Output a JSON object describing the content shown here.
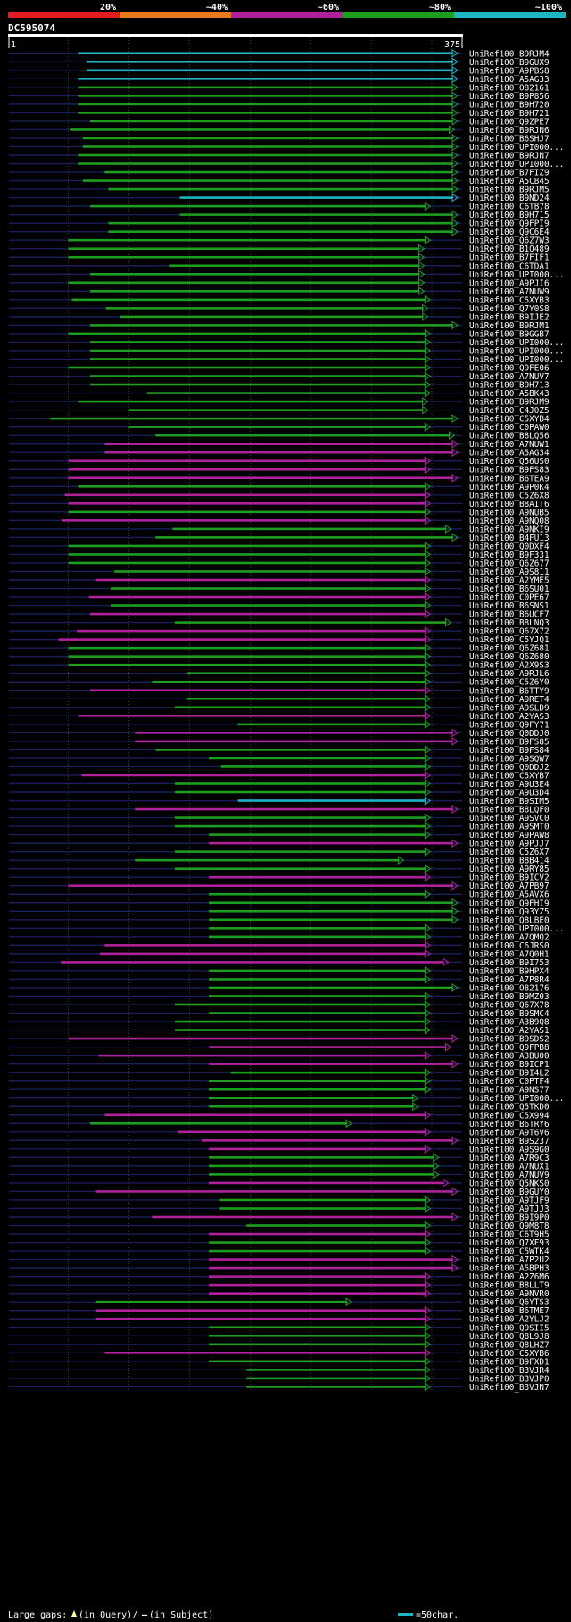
{
  "chart_data": {
    "type": "alignment-overview",
    "query_id": "DC595074",
    "query_start": "1",
    "query_end": "375",
    "query_length": 375,
    "identity_legend": [
      {
        "label": "20%",
        "color": "#e31b23"
      },
      {
        "label": "~40%",
        "color": "#e87a1e"
      },
      {
        "label": "~60%",
        "color": "#b0229c"
      },
      {
        "label": "~80%",
        "color": "#1e9e1e"
      },
      {
        "label": "~100%",
        "color": "#1fb5c2"
      }
    ],
    "footer": {
      "gaps_label": "Large gaps:",
      "query_gap_label": "(in Query)/",
      "subject_gap_label": "(in Subject)",
      "scale_label": "=50char."
    },
    "hits": [
      {
        "id": "UniRef100_B9RJM4",
        "start": 58,
        "end": 375,
        "color": "#1fb5c2"
      },
      {
        "id": "UniRef100_B9GUX9",
        "start": 65,
        "end": 375,
        "color": "#1fb5c2"
      },
      {
        "id": "UniRef100_A9PBS8",
        "start": 65,
        "end": 375,
        "color": "#1fb5c2"
      },
      {
        "id": "UniRef100_A5AG33",
        "start": 58,
        "end": 375,
        "color": "#1fb5c2"
      },
      {
        "id": "UniRef100_O82161",
        "start": 58,
        "end": 373,
        "color": "#1e9e1e"
      },
      {
        "id": "UniRef100_B9P856",
        "start": 58,
        "end": 378,
        "color": "#1e9e1e"
      },
      {
        "id": "UniRef100_B9H720",
        "start": 58,
        "end": 378,
        "color": "#1e9e1e"
      },
      {
        "id": "UniRef100_B9H721",
        "start": 58,
        "end": 378,
        "color": "#1e9e1e"
      },
      {
        "id": "UniRef100_Q9ZPE7",
        "start": 68,
        "end": 380,
        "color": "#1e9e1e"
      },
      {
        "id": "UniRef100_B9RJN6",
        "start": 52,
        "end": 368,
        "color": "#1e9e1e"
      },
      {
        "id": "UniRef100_B6SHJ7",
        "start": 62,
        "end": 382,
        "color": "#1e9e1e"
      },
      {
        "id": "UniRef100_UPI000...",
        "start": 62,
        "end": 378,
        "color": "#1e9e1e"
      },
      {
        "id": "UniRef100_B9RJN7",
        "start": 58,
        "end": 378,
        "color": "#1e9e1e"
      },
      {
        "id": "UniRef100_UPI000...",
        "start": 58,
        "end": 381,
        "color": "#1e9e1e"
      },
      {
        "id": "UniRef100_B7FIZ9",
        "start": 80,
        "end": 380,
        "color": "#1e9e1e"
      },
      {
        "id": "UniRef100_A5CB45",
        "start": 62,
        "end": 382,
        "color": "#1e9e1e"
      },
      {
        "id": "UniRef100_B9RJM5",
        "start": 83,
        "end": 375,
        "color": "#1e9e1e"
      },
      {
        "id": "UniRef100_B9ND24",
        "start": 142,
        "end": 378,
        "color": "#1fb5c2"
      },
      {
        "id": "UniRef100_C6TB78",
        "start": 68,
        "end": 348,
        "color": "#1e9e1e"
      },
      {
        "id": "UniRef100_B9H715",
        "start": 142,
        "end": 378,
        "color": "#1e9e1e"
      },
      {
        "id": "UniRef100_Q9FPI9",
        "start": 83,
        "end": 380,
        "color": "#1e9e1e"
      },
      {
        "id": "UniRef100_Q9C6E4",
        "start": 83,
        "end": 380,
        "color": "#1e9e1e"
      },
      {
        "id": "UniRef100_Q6Z7W3",
        "start": 50,
        "end": 348,
        "color": "#1e9e1e"
      },
      {
        "id": "UniRef100_B1Q489",
        "start": 50,
        "end": 343,
        "color": "#1e9e1e"
      },
      {
        "id": "UniRef100_B7FIF1",
        "start": 50,
        "end": 343,
        "color": "#1e9e1e"
      },
      {
        "id": "UniRef100_C6TDA1",
        "start": 133,
        "end": 343,
        "color": "#1e9e1e"
      },
      {
        "id": "UniRef100_UPI000...",
        "start": 68,
        "end": 343,
        "color": "#1e9e1e"
      },
      {
        "id": "UniRef100_A9PJI6",
        "start": 50,
        "end": 343,
        "color": "#1e9e1e"
      },
      {
        "id": "UniRef100_A7NUW9",
        "start": 68,
        "end": 343,
        "color": "#1e9e1e"
      },
      {
        "id": "UniRef100_C5XYB3",
        "start": 53,
        "end": 348,
        "color": "#1e9e1e"
      },
      {
        "id": "UniRef100_Q7Y0S8",
        "start": 81,
        "end": 346,
        "color": "#1e9e1e"
      },
      {
        "id": "UniRef100_B9IJE2",
        "start": 93,
        "end": 346,
        "color": "#1e9e1e"
      },
      {
        "id": "UniRef100_B9RJM1",
        "start": 68,
        "end": 375,
        "color": "#1e9e1e"
      },
      {
        "id": "UniRef100_B9GGB7",
        "start": 50,
        "end": 348,
        "color": "#1e9e1e"
      },
      {
        "id": "UniRef100_UPI000...",
        "start": 68,
        "end": 348,
        "color": "#1e9e1e"
      },
      {
        "id": "UniRef100_UPI000...",
        "start": 68,
        "end": 348,
        "color": "#1e9e1e"
      },
      {
        "id": "UniRef100_UPI000...",
        "start": 68,
        "end": 348,
        "color": "#1e9e1e"
      },
      {
        "id": "UniRef100_Q9FE06",
        "start": 50,
        "end": 348,
        "color": "#1e9e1e"
      },
      {
        "id": "UniRef100_A7NUV7",
        "start": 68,
        "end": 348,
        "color": "#1e9e1e"
      },
      {
        "id": "UniRef100_B9H713",
        "start": 68,
        "end": 348,
        "color": "#1e9e1e"
      },
      {
        "id": "UniRef100_A5BK43",
        "start": 115,
        "end": 348,
        "color": "#1e9e1e"
      },
      {
        "id": "UniRef100_B9RJM9",
        "start": 58,
        "end": 346,
        "color": "#1e9e1e"
      },
      {
        "id": "UniRef100_C4J0Z5",
        "start": 100,
        "end": 346,
        "color": "#1e9e1e"
      },
      {
        "id": "UniRef100_C5XYB4",
        "start": 35,
        "end": 375,
        "color": "#1e9e1e"
      },
      {
        "id": "UniRef100_C0PAW0",
        "start": 100,
        "end": 348,
        "color": "#1e9e1e"
      },
      {
        "id": "UniRef100_B8LQ56",
        "start": 122,
        "end": 368,
        "color": "#1e9e1e"
      },
      {
        "id": "UniRef100_A7NUW1",
        "start": 80,
        "end": 372,
        "color": "#b0229c"
      },
      {
        "id": "UniRef100_A5AG34",
        "start": 80,
        "end": 372,
        "color": "#b0229c"
      },
      {
        "id": "UniRef100_Q56US0",
        "start": 50,
        "end": 348,
        "color": "#b0229c"
      },
      {
        "id": "UniRef100_B9FS83",
        "start": 50,
        "end": 348,
        "color": "#b0229c"
      },
      {
        "id": "UniRef100_B6TEA9",
        "start": 50,
        "end": 373,
        "color": "#b0229c"
      },
      {
        "id": "UniRef100_A9P0K4",
        "start": 58,
        "end": 348,
        "color": "#1e9e1e"
      },
      {
        "id": "UniRef100_C5Z6X8",
        "start": 47,
        "end": 348,
        "color": "#b0229c"
      },
      {
        "id": "UniRef100_B8AIT6",
        "start": 50,
        "end": 348,
        "color": "#b0229c"
      },
      {
        "id": "UniRef100_A9NUB5",
        "start": 50,
        "end": 348,
        "color": "#1e9e1e"
      },
      {
        "id": "UniRef100_A9NQ08",
        "start": 45,
        "end": 348,
        "color": "#b0229c"
      },
      {
        "id": "UniRef100_A9NKI9",
        "start": 136,
        "end": 365,
        "color": "#1e9e1e"
      },
      {
        "id": "UniRef100_B4FU13",
        "start": 122,
        "end": 373,
        "color": "#1e9e1e"
      },
      {
        "id": "UniRef100_Q0DXF4",
        "start": 50,
        "end": 348,
        "color": "#1e9e1e"
      },
      {
        "id": "UniRef100_B9F331",
        "start": 50,
        "end": 348,
        "color": "#1e9e1e"
      },
      {
        "id": "UniRef100_Q6Z677",
        "start": 50,
        "end": 348,
        "color": "#1e9e1e"
      },
      {
        "id": "UniRef100_A9S811",
        "start": 88,
        "end": 348,
        "color": "#1e9e1e"
      },
      {
        "id": "UniRef100_A2YME5",
        "start": 73,
        "end": 348,
        "color": "#b0229c"
      },
      {
        "id": "UniRef100_B6SU01",
        "start": 85,
        "end": 348,
        "color": "#1e9e1e"
      },
      {
        "id": "UniRef100_C0PE67",
        "start": 67,
        "end": 348,
        "color": "#b0229c"
      },
      {
        "id": "UniRef100_B6SNS1",
        "start": 85,
        "end": 348,
        "color": "#1e9e1e"
      },
      {
        "id": "UniRef100_B6UCF7",
        "start": 68,
        "end": 348,
        "color": "#b0229c"
      },
      {
        "id": "UniRef100_B8LNQ3",
        "start": 138,
        "end": 365,
        "color": "#1e9e1e"
      },
      {
        "id": "UniRef100_Q67X72",
        "start": 57,
        "end": 348,
        "color": "#b0229c"
      },
      {
        "id": "UniRef100_C5YJQ1",
        "start": 42,
        "end": 348,
        "color": "#b0229c"
      },
      {
        "id": "UniRef100_Q6Z681",
        "start": 50,
        "end": 348,
        "color": "#1e9e1e"
      },
      {
        "id": "UniRef100_Q6Z680",
        "start": 50,
        "end": 348,
        "color": "#1e9e1e"
      },
      {
        "id": "UniRef100_A2X9S3",
        "start": 50,
        "end": 348,
        "color": "#1e9e1e"
      },
      {
        "id": "UniRef100_A9RJL6",
        "start": 148,
        "end": 348,
        "color": "#1e9e1e"
      },
      {
        "id": "UniRef100_C5Z6Y0",
        "start": 119,
        "end": 348,
        "color": "#1e9e1e"
      },
      {
        "id": "UniRef100_B6TTY9",
        "start": 68,
        "end": 348,
        "color": "#b0229c"
      },
      {
        "id": "UniRef100_A9RET4",
        "start": 148,
        "end": 348,
        "color": "#1e9e1e"
      },
      {
        "id": "UniRef100_A9SLD9",
        "start": 138,
        "end": 348,
        "color": "#1e9e1e"
      },
      {
        "id": "UniRef100_A2YAS3",
        "start": 58,
        "end": 348,
        "color": "#b0229c"
      },
      {
        "id": "UniRef100_Q9FY71",
        "start": 190,
        "end": 348,
        "color": "#1e9e1e"
      },
      {
        "id": "UniRef100_Q0DDJ0",
        "start": 105,
        "end": 385,
        "color": "#b0229c"
      },
      {
        "id": "UniRef100_B9FS85",
        "start": 105,
        "end": 385,
        "color": "#b0229c"
      },
      {
        "id": "UniRef100_B9FS84",
        "start": 122,
        "end": 348,
        "color": "#1e9e1e"
      },
      {
        "id": "UniRef100_A9SQW7",
        "start": 166,
        "end": 348,
        "color": "#1e9e1e"
      },
      {
        "id": "UniRef100_Q0DDJ2",
        "start": 176,
        "end": 348,
        "color": "#1e9e1e"
      },
      {
        "id": "UniRef100_C5XYB7",
        "start": 61,
        "end": 348,
        "color": "#b0229c"
      },
      {
        "id": "UniRef100_A9U3E4",
        "start": 138,
        "end": 348,
        "color": "#1e9e1e"
      },
      {
        "id": "UniRef100_A9U3D4",
        "start": 138,
        "end": 348,
        "color": "#1e9e1e"
      },
      {
        "id": "UniRef100_B9SIM5",
        "start": 190,
        "end": 348,
        "color": "#1fb5c2"
      },
      {
        "id": "UniRef100_B8LQF0",
        "start": 105,
        "end": 385,
        "color": "#b0229c"
      },
      {
        "id": "UniRef100_A9SVC0",
        "start": 138,
        "end": 348,
        "color": "#1e9e1e"
      },
      {
        "id": "UniRef100_A9SMT0",
        "start": 138,
        "end": 348,
        "color": "#1e9e1e"
      },
      {
        "id": "UniRef100_A9PAW8",
        "start": 166,
        "end": 348,
        "color": "#1e9e1e"
      },
      {
        "id": "UniRef100_A9PJJ7",
        "start": 166,
        "end": 385,
        "color": "#b0229c"
      },
      {
        "id": "UniRef100_C5Z6X7",
        "start": 138,
        "end": 348,
        "color": "#1e9e1e"
      },
      {
        "id": "UniRef100_B8B414",
        "start": 105,
        "end": 326,
        "color": "#1e9e1e"
      },
      {
        "id": "UniRef100_A9RY85",
        "start": 138,
        "end": 348,
        "color": "#1e9e1e"
      },
      {
        "id": "UniRef100_B9ICV2",
        "start": 166,
        "end": 348,
        "color": "#b0229c"
      },
      {
        "id": "UniRef100_A7PB97",
        "start": 50,
        "end": 385,
        "color": "#b0229c"
      },
      {
        "id": "UniRef100_A5AVX6",
        "start": 166,
        "end": 348,
        "color": "#1e9e1e"
      },
      {
        "id": "UniRef100_Q9FHI9",
        "start": 166,
        "end": 385,
        "color": "#1e9e1e"
      },
      {
        "id": "UniRef100_Q93YZ5",
        "start": 166,
        "end": 385,
        "color": "#1e9e1e"
      },
      {
        "id": "UniRef100_Q8LBE0",
        "start": 166,
        "end": 385,
        "color": "#1e9e1e"
      },
      {
        "id": "UniRef100_UPI000...",
        "start": 166,
        "end": 348,
        "color": "#1e9e1e"
      },
      {
        "id": "UniRef100_A7QMQ2",
        "start": 166,
        "end": 348,
        "color": "#1e9e1e"
      },
      {
        "id": "UniRef100_C6JRS0",
        "start": 80,
        "end": 348,
        "color": "#b0229c"
      },
      {
        "id": "UniRef100_A7Q0H1",
        "start": 76,
        "end": 348,
        "color": "#b0229c"
      },
      {
        "id": "UniRef100_B9I753",
        "start": 44,
        "end": 363,
        "color": "#b0229c"
      },
      {
        "id": "UniRef100_B9HPX4",
        "start": 166,
        "end": 348,
        "color": "#1e9e1e"
      },
      {
        "id": "UniRef100_A7P8R4",
        "start": 166,
        "end": 348,
        "color": "#1e9e1e"
      },
      {
        "id": "UniRef100_O82176",
        "start": 166,
        "end": 385,
        "color": "#1e9e1e"
      },
      {
        "id": "UniRef100_B9MZ03",
        "start": 166,
        "end": 348,
        "color": "#1e9e1e"
      },
      {
        "id": "UniRef100_Q67X78",
        "start": 138,
        "end": 348,
        "color": "#1e9e1e"
      },
      {
        "id": "UniRef100_B9SMC4",
        "start": 166,
        "end": 348,
        "color": "#1e9e1e"
      },
      {
        "id": "UniRef100_A3B9Q8",
        "start": 138,
        "end": 348,
        "color": "#1e9e1e"
      },
      {
        "id": "UniRef100_A2YAS1",
        "start": 138,
        "end": 348,
        "color": "#1e9e1e"
      },
      {
        "id": "UniRef100_B9SDS2",
        "start": 50,
        "end": 375,
        "color": "#b0229c"
      },
      {
        "id": "UniRef100_Q9FPB8",
        "start": 166,
        "end": 365,
        "color": "#b0229c"
      },
      {
        "id": "UniRef100_A3BU00",
        "start": 75,
        "end": 348,
        "color": "#b0229c"
      },
      {
        "id": "UniRef100_B9ICP1",
        "start": 166,
        "end": 375,
        "color": "#b0229c"
      },
      {
        "id": "UniRef100_B9I4L2",
        "start": 184,
        "end": 348,
        "color": "#1e9e1e"
      },
      {
        "id": "UniRef100_C0PTF4",
        "start": 166,
        "end": 348,
        "color": "#1e9e1e"
      },
      {
        "id": "UniRef100_A9NS77",
        "start": 166,
        "end": 348,
        "color": "#1e9e1e"
      },
      {
        "id": "UniRef100_UPI000...",
        "start": 166,
        "end": 338,
        "color": "#1e9e1e"
      },
      {
        "id": "UniRef100_Q5TKD0",
        "start": 166,
        "end": 338,
        "color": "#1e9e1e"
      },
      {
        "id": "UniRef100_C5X994",
        "start": 80,
        "end": 348,
        "color": "#b0229c"
      },
      {
        "id": "UniRef100_B6TRY6",
        "start": 68,
        "end": 283,
        "color": "#1e9e1e"
      },
      {
        "id": "UniRef100_A9T6V6",
        "start": 140,
        "end": 348,
        "color": "#b0229c"
      },
      {
        "id": "UniRef100_B9S237",
        "start": 160,
        "end": 375,
        "color": "#b0229c"
      },
      {
        "id": "UniRef100_A9S9G0",
        "start": 166,
        "end": 348,
        "color": "#b0229c"
      },
      {
        "id": "UniRef100_A7R9C3",
        "start": 166,
        "end": 355,
        "color": "#1e9e1e"
      },
      {
        "id": "UniRef100_A7NUX1",
        "start": 166,
        "end": 355,
        "color": "#1e9e1e"
      },
      {
        "id": "UniRef100_A7NUV9",
        "start": 166,
        "end": 355,
        "color": "#1e9e1e"
      },
      {
        "id": "UniRef100_Q5NKS0",
        "start": 166,
        "end": 363,
        "color": "#b0229c"
      },
      {
        "id": "UniRef100_B9GUY0",
        "start": 73,
        "end": 385,
        "color": "#b0229c"
      },
      {
        "id": "UniRef100_A9TJF9",
        "start": 175,
        "end": 348,
        "color": "#1e9e1e"
      },
      {
        "id": "UniRef100_A9TJJ3",
        "start": 175,
        "end": 348,
        "color": "#1e9e1e"
      },
      {
        "id": "UniRef100_B9I9P0",
        "start": 119,
        "end": 385,
        "color": "#b0229c"
      },
      {
        "id": "UniRef100_Q9M8T8",
        "start": 197,
        "end": 348,
        "color": "#1e9e1e"
      },
      {
        "id": "UniRef100_C6T9H5",
        "start": 166,
        "end": 348,
        "color": "#b0229c"
      },
      {
        "id": "UniRef100_Q7XF93",
        "start": 166,
        "end": 348,
        "color": "#1e9e1e"
      },
      {
        "id": "UniRef100_C5WTK4",
        "start": 166,
        "end": 348,
        "color": "#1e9e1e"
      },
      {
        "id": "UniRef100_A7P2U2",
        "start": 166,
        "end": 375,
        "color": "#b0229c"
      },
      {
        "id": "UniRef100_A5BPH3",
        "start": 166,
        "end": 375,
        "color": "#b0229c"
      },
      {
        "id": "UniRef100_A2Z6M6",
        "start": 166,
        "end": 348,
        "color": "#b0229c"
      },
      {
        "id": "UniRef100_B8LLT9",
        "start": 166,
        "end": 348,
        "color": "#b0229c"
      },
      {
        "id": "UniRef100_A9NVR0",
        "start": 166,
        "end": 348,
        "color": "#b0229c"
      },
      {
        "id": "UniRef100_Q6YTS3",
        "start": 73,
        "end": 283,
        "color": "#1e9e1e"
      },
      {
        "id": "UniRef100_B6TME7",
        "start": 73,
        "end": 348,
        "color": "#b0229c"
      },
      {
        "id": "UniRef100_A2YLJ2",
        "start": 73,
        "end": 348,
        "color": "#b0229c"
      },
      {
        "id": "UniRef100_Q9SII5",
        "start": 166,
        "end": 348,
        "color": "#1e9e1e"
      },
      {
        "id": "UniRef100_Q8L9J8",
        "start": 166,
        "end": 348,
        "color": "#1e9e1e"
      },
      {
        "id": "UniRef100_Q8LHZ7",
        "start": 166,
        "end": 348,
        "color": "#1e9e1e"
      },
      {
        "id": "UniRef100_C5XYB6",
        "start": 80,
        "end": 348,
        "color": "#b0229c"
      },
      {
        "id": "UniRef100_B9FXD1",
        "start": 166,
        "end": 348,
        "color": "#1e9e1e"
      },
      {
        "id": "UniRef100_B3VJR4",
        "start": 197,
        "end": 348,
        "color": "#1e9e1e"
      },
      {
        "id": "UniRef100_B3VJP0",
        "start": 197,
        "end": 348,
        "color": "#1e9e1e"
      },
      {
        "id": "UniRef100_B3VJN7",
        "start": 197,
        "end": 348,
        "color": "#1e9e1e"
      }
    ]
  }
}
